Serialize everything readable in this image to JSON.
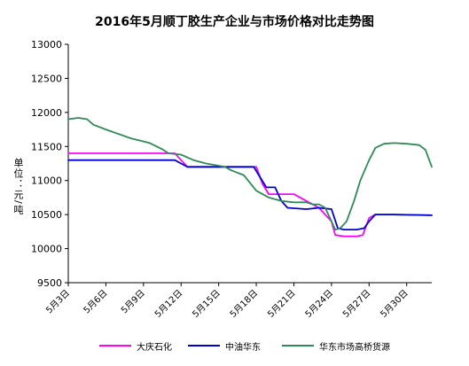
{
  "chart_data": {
    "type": "line",
    "title": "2016年5月顺丁胶生产企业与市场价格对比走势图",
    "ylabel": "单位：元/吨",
    "xlabel": "",
    "ylim": [
      9500,
      13000
    ],
    "yticks": [
      9500,
      10000,
      10500,
      11000,
      11500,
      12000,
      12500,
      13000
    ],
    "x_tick_labels": [
      "5月3日",
      "5月6日",
      "5月9日",
      "5月12日",
      "5月15日",
      "5月18日",
      "5月21日",
      "5月24日",
      "5月27日",
      "5月30日"
    ],
    "x_tick_days": [
      3,
      6,
      9,
      12,
      15,
      18,
      21,
      24,
      27,
      30
    ],
    "xlim": [
      3,
      32
    ],
    "grid": false,
    "legend_position": "bottom",
    "series": [
      {
        "name": "大庆石化",
        "color": "#ff00ff",
        "points": [
          [
            3,
            11400
          ],
          [
            11.5,
            11400
          ],
          [
            12,
            11300
          ],
          [
            12.5,
            11200
          ],
          [
            17,
            11200
          ],
          [
            18,
            11200
          ],
          [
            18.5,
            10950
          ],
          [
            19,
            10800
          ],
          [
            20,
            10800
          ],
          [
            21,
            10800
          ],
          [
            22,
            10700
          ],
          [
            23,
            10600
          ],
          [
            24,
            10400
          ],
          [
            24.3,
            10200
          ],
          [
            25,
            10180
          ],
          [
            26,
            10180
          ],
          [
            26.5,
            10200
          ],
          [
            27,
            10450
          ],
          [
            27.5,
            10500
          ],
          [
            29,
            10500
          ],
          [
            32,
            10490
          ]
        ]
      },
      {
        "name": "中油华东",
        "color": "#0000cc",
        "points": [
          [
            3,
            11300
          ],
          [
            11.5,
            11300
          ],
          [
            12,
            11250
          ],
          [
            12.5,
            11200
          ],
          [
            17,
            11200
          ],
          [
            17.8,
            11200
          ],
          [
            18.3,
            11050
          ],
          [
            18.8,
            10900
          ],
          [
            19.5,
            10900
          ],
          [
            20,
            10700
          ],
          [
            20.5,
            10600
          ],
          [
            22,
            10580
          ],
          [
            23,
            10600
          ],
          [
            24,
            10580
          ],
          [
            24.5,
            10300
          ],
          [
            25,
            10280
          ],
          [
            26,
            10280
          ],
          [
            26.6,
            10300
          ],
          [
            27,
            10400
          ],
          [
            27.5,
            10500
          ],
          [
            29,
            10500
          ],
          [
            32,
            10490
          ]
        ]
      },
      {
        "name": "华东市场高桥货源",
        "color": "#2e8b57",
        "points": [
          [
            3,
            11900
          ],
          [
            3.8,
            11920
          ],
          [
            4.5,
            11900
          ],
          [
            5,
            11820
          ],
          [
            6,
            11750
          ],
          [
            8,
            11620
          ],
          [
            9.5,
            11550
          ],
          [
            10.5,
            11460
          ],
          [
            11,
            11400
          ],
          [
            12,
            11380
          ],
          [
            13,
            11300
          ],
          [
            14,
            11250
          ],
          [
            15.5,
            11200
          ],
          [
            16,
            11150
          ],
          [
            17,
            11080
          ],
          [
            18,
            10850
          ],
          [
            19,
            10750
          ],
          [
            20,
            10700
          ],
          [
            21,
            10680
          ],
          [
            22,
            10680
          ],
          [
            22.5,
            10650
          ],
          [
            23,
            10650
          ],
          [
            23.5,
            10600
          ],
          [
            24,
            10400
          ],
          [
            24.3,
            10280
          ],
          [
            24.7,
            10300
          ],
          [
            25.2,
            10400
          ],
          [
            25.8,
            10700
          ],
          [
            26.3,
            11000
          ],
          [
            27,
            11300
          ],
          [
            27.5,
            11480
          ],
          [
            28.2,
            11540
          ],
          [
            29,
            11550
          ],
          [
            30,
            11540
          ],
          [
            31,
            11520
          ],
          [
            31.5,
            11450
          ],
          [
            32,
            11200
          ]
        ]
      }
    ]
  }
}
